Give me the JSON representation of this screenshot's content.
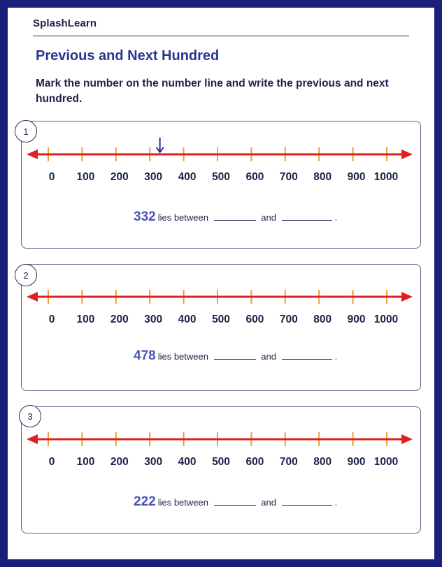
{
  "brand": "SplashLearn",
  "title": "Previous and Next Hundred",
  "instructions": "Mark the number on the number line and write the previous and next hundred.",
  "tick_labels": [
    "0",
    "100",
    "200",
    "300",
    "400",
    "500",
    "600",
    "700",
    "800",
    "900",
    "1000"
  ],
  "colors": {
    "frame": "#1b1f7a",
    "line": "#e02020",
    "tick": "#f0a030",
    "marker": "#1b1f7a",
    "number": "#4a55b8"
  },
  "problems": [
    {
      "index": "1",
      "number": "332",
      "marked_value": 332,
      "text": "lies between",
      "and": "and",
      "end": "."
    },
    {
      "index": "2",
      "number": "478",
      "marked_value": null,
      "text": "lies between",
      "and": "and",
      "end": "."
    },
    {
      "index": "3",
      "number": "222",
      "marked_value": null,
      "text": "lies between",
      "and": "and",
      "end": "."
    }
  ]
}
